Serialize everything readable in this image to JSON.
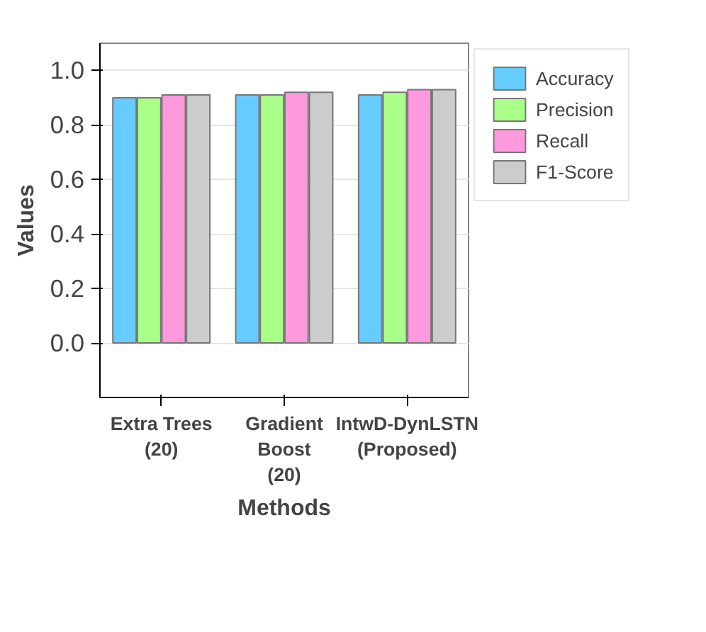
{
  "chart_data": {
    "type": "bar",
    "xlabel": "Methods",
    "ylabel": "Values",
    "categories": [
      "Extra Trees\n(20)",
      "Gradient\nBoost\n(20)",
      "IntwD-DynLSTN\n(Proposed)"
    ],
    "series": [
      {
        "name": "Accuracy",
        "color": "#66ccff",
        "values": [
          0.9,
          0.91,
          0.91
        ]
      },
      {
        "name": "Precision",
        "color": "#aaff88",
        "values": [
          0.9,
          0.91,
          0.92
        ]
      },
      {
        "name": "Recall",
        "color": "#ff99dd",
        "values": [
          0.91,
          0.92,
          0.93
        ]
      },
      {
        "name": "F1-Score",
        "color": "#cccccc",
        "values": [
          0.91,
          0.92,
          0.93
        ]
      }
    ],
    "ylim": [
      -0.2,
      1.1
    ],
    "yticks": [
      {
        "value": 0,
        "label": "0.0"
      },
      0.2,
      0.4,
      0.6,
      0.8,
      {
        "value": 1,
        "label": "1.0"
      }
    ],
    "grid": "y",
    "legend": "top right"
  }
}
